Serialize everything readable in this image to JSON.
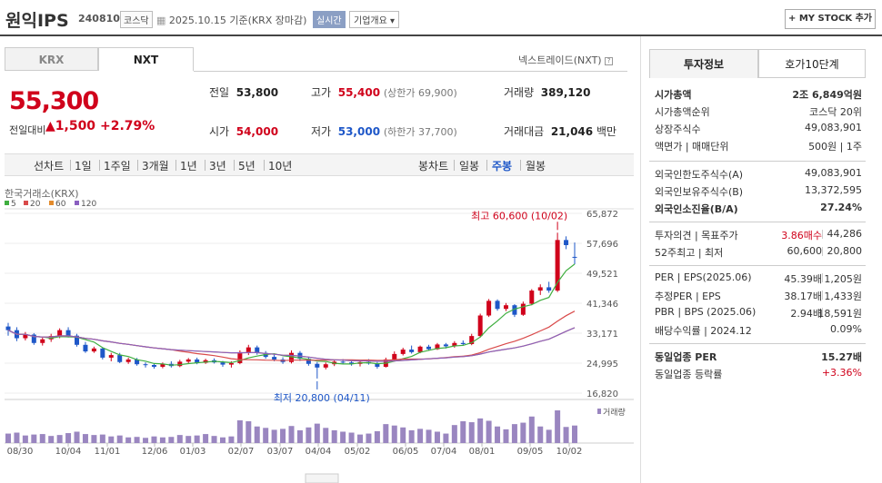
{
  "header": {
    "title": "원익IPS",
    "code": "240810",
    "market": "코스닥",
    "date": "2025.10.15",
    "basis": "기준(KRX 장마감)",
    "realtime": "실시간",
    "overview": "기업개요",
    "mystock": "+ MY STOCK 추가"
  },
  "tabs": {
    "krx": "KRX",
    "nxt": "NXT",
    "nxt_link": "넥스트레이드(NXT)"
  },
  "price": {
    "current": "55,300",
    "change_label": "전일대비",
    "change": "▲1,500",
    "pct": "+2.79%",
    "prev_label": "전일",
    "prev": "53,800",
    "high_label": "고가",
    "high": "55,400",
    "upper": "(상한가 69,900)",
    "volume_label": "거래량",
    "volume": "389,120",
    "open_label": "시가",
    "open": "54,000",
    "low_label": "저가",
    "low": "53,000",
    "lower": "(하한가 37,700)",
    "amount_label": "거래대금",
    "amount": "21,046",
    "amount_unit": "백만"
  },
  "chart_controls": {
    "periods": [
      "선차트",
      "1일",
      "1주일",
      "3개월",
      "1년",
      "3년",
      "5년",
      "10년"
    ],
    "candles": [
      "봉차트",
      "일봉",
      "주봉",
      "월봉"
    ],
    "selected_candle": "주봉"
  },
  "chart_data": {
    "type": "candlestick",
    "source_label": "한국거래소(KRX)",
    "ma_legend": [
      {
        "name": "5",
        "color": "#3fae3f"
      },
      {
        "name": "20",
        "color": "#d94a4a"
      },
      {
        "name": "60",
        "color": "#e38b2c"
      },
      {
        "name": "120",
        "color": "#8a5fc0"
      }
    ],
    "y_ticks": [
      "65,872",
      "57,696",
      "49,521",
      "41,346",
      "33,171",
      "24,995",
      "16,820"
    ],
    "x_ticks": [
      "08/30",
      "10/04",
      "11/01",
      "12/06",
      "01/03",
      "02/07",
      "03/07",
      "04/04",
      "05/02",
      "06/05",
      "07/04",
      "08/01",
      "09/05",
      "10/02"
    ],
    "high_annotation": "최고 60,600 (10/02)",
    "low_annotation": "최저 20,800 (04/11)",
    "volume_label": "거래량",
    "ylim": [
      16820,
      65872
    ],
    "candles": [
      [
        35000,
        36000,
        32500,
        34000
      ],
      [
        34000,
        34800,
        31000,
        31800
      ],
      [
        31800,
        33500,
        31200,
        32800
      ],
      [
        32800,
        33200,
        30000,
        30500
      ],
      [
        30500,
        32000,
        29800,
        31500
      ],
      [
        31500,
        33000,
        30800,
        32400
      ],
      [
        32400,
        34500,
        31800,
        34000
      ],
      [
        34000,
        34800,
        32000,
        32500
      ],
      [
        32500,
        33000,
        29500,
        30000
      ],
      [
        30000,
        30800,
        27800,
        28200
      ],
      [
        28200,
        29500,
        27800,
        29000
      ],
      [
        29000,
        29300,
        26000,
        26500
      ],
      [
        26500,
        27800,
        25500,
        27200
      ],
      [
        27200,
        27800,
        25000,
        25300
      ],
      [
        25300,
        26500,
        24800,
        26000
      ],
      [
        26000,
        26400,
        24300,
        24700
      ],
      [
        24700,
        25200,
        23800,
        24500
      ],
      [
        24500,
        25000,
        23500,
        24000
      ],
      [
        24000,
        25200,
        23600,
        24800
      ],
      [
        24800,
        25500,
        23800,
        24200
      ],
      [
        24200,
        25900,
        23900,
        25400
      ],
      [
        25400,
        26400,
        24800,
        26000
      ],
      [
        26000,
        26500,
        24700,
        25100
      ],
      [
        25100,
        26200,
        24800,
        25800
      ],
      [
        25800,
        26300,
        24900,
        25200
      ],
      [
        25200,
        25600,
        24000,
        24600
      ],
      [
        24600,
        25500,
        23800,
        25000
      ],
      [
        25000,
        28500,
        24700,
        28000
      ],
      [
        28000,
        30000,
        27200,
        29300
      ],
      [
        29300,
        29800,
        27300,
        27800
      ],
      [
        27800,
        28300,
        26200,
        26700
      ],
      [
        26700,
        27300,
        25500,
        26000
      ],
      [
        26000,
        26600,
        24800,
        25300
      ],
      [
        25300,
        28500,
        24900,
        27800
      ],
      [
        27800,
        28300,
        25600,
        26200
      ],
      [
        26200,
        26700,
        24300,
        24800
      ],
      [
        24800,
        25300,
        20800,
        23800
      ],
      [
        23800,
        25200,
        23300,
        24700
      ],
      [
        24700,
        25800,
        24200,
        25400
      ],
      [
        25400,
        26100,
        24800,
        25200
      ],
      [
        25200,
        25700,
        24300,
        24800
      ],
      [
        24800,
        25600,
        24100,
        25300
      ],
      [
        25300,
        26100,
        24600,
        24900
      ],
      [
        24900,
        25300,
        23500,
        24000
      ],
      [
        24000,
        26500,
        23800,
        26000
      ],
      [
        26000,
        28200,
        25600,
        27500
      ],
      [
        27500,
        29200,
        27100,
        28700
      ],
      [
        28700,
        29800,
        27600,
        28000
      ],
      [
        28000,
        29800,
        27700,
        29500
      ],
      [
        29500,
        30000,
        28400,
        28800
      ],
      [
        28800,
        30500,
        28600,
        30100
      ],
      [
        30100,
        30500,
        29000,
        29600
      ],
      [
        29600,
        31000,
        29200,
        30500
      ],
      [
        30500,
        31200,
        29800,
        30200
      ],
      [
        30200,
        33000,
        29900,
        32400
      ],
      [
        32400,
        38500,
        32000,
        38000
      ],
      [
        38000,
        42500,
        37600,
        42000
      ],
      [
        42000,
        42400,
        39300,
        39800
      ],
      [
        39800,
        41400,
        39200,
        40800
      ],
      [
        40800,
        41100,
        37600,
        38200
      ],
      [
        38200,
        41800,
        37900,
        41200
      ],
      [
        41200,
        45200,
        40800,
        44800
      ],
      [
        44800,
        46500,
        43600,
        45700
      ],
      [
        45700,
        47200,
        44200,
        44800
      ],
      [
        44800,
        60600,
        44400,
        58600
      ],
      [
        58600,
        59600,
        56100,
        57200
      ],
      [
        54000,
        57900,
        52000,
        53800
      ]
    ],
    "volumes": [
      20,
      22,
      16,
      18,
      19,
      15,
      17,
      21,
      24,
      19,
      17,
      18,
      14,
      16,
      12,
      13,
      11,
      14,
      12,
      13,
      17,
      15,
      16,
      19,
      15,
      12,
      14,
      48,
      46,
      35,
      32,
      28,
      30,
      36,
      27,
      33,
      41,
      32,
      27,
      24,
      22,
      18,
      20,
      25,
      40,
      37,
      33,
      27,
      30,
      28,
      24,
      20,
      38,
      46,
      44,
      52,
      47,
      35,
      29,
      40,
      43,
      56,
      35,
      28,
      69,
      34,
      37
    ]
  },
  "right_panel": {
    "tabs": [
      "투자정보",
      "호가10단계"
    ],
    "rows1": [
      {
        "label": "시가총액",
        "value": "2조 6,849억원",
        "bold": true
      },
      {
        "label": "시가총액순위",
        "value": "코스닥 20위"
      },
      {
        "label": "상장주식수",
        "value": "49,083,901"
      },
      {
        "label": "액면가 | 매매단위",
        "value": "500원 | 1주"
      }
    ],
    "rows2": [
      {
        "label": "외국인한도주식수(A)",
        "value": "49,083,901"
      },
      {
        "label": "외국인보유주식수(B)",
        "value": "13,372,595"
      },
      {
        "label": "외국인소진율(B/A)",
        "value": "27.24%",
        "bold": true
      }
    ],
    "rows3": [
      {
        "label": "투자의견 | 목표주가",
        "mid": "3.86매수",
        "value": "44,286"
      },
      {
        "label": "52주최고 | 최저",
        "mid": "60,600",
        "value": "20,800"
      }
    ],
    "rows4": [
      {
        "label": "PER | EPS(2025.06)",
        "mid": "45.39배",
        "value": "1,205원"
      },
      {
        "label": "추정PER | EPS",
        "mid": "38.17배",
        "value": "1,433원"
      },
      {
        "label": "PBR | BPS (2025.06)",
        "mid": "2.94배",
        "value": "18,591원"
      },
      {
        "label": "배당수익률 | 2024.12",
        "value": "0.09%"
      }
    ],
    "rows5": [
      {
        "label": "동일업종 PER",
        "value": "15.27배",
        "bold": true
      },
      {
        "label": "동일업종 등락률",
        "value": "+3.36%",
        "red": true
      }
    ]
  }
}
